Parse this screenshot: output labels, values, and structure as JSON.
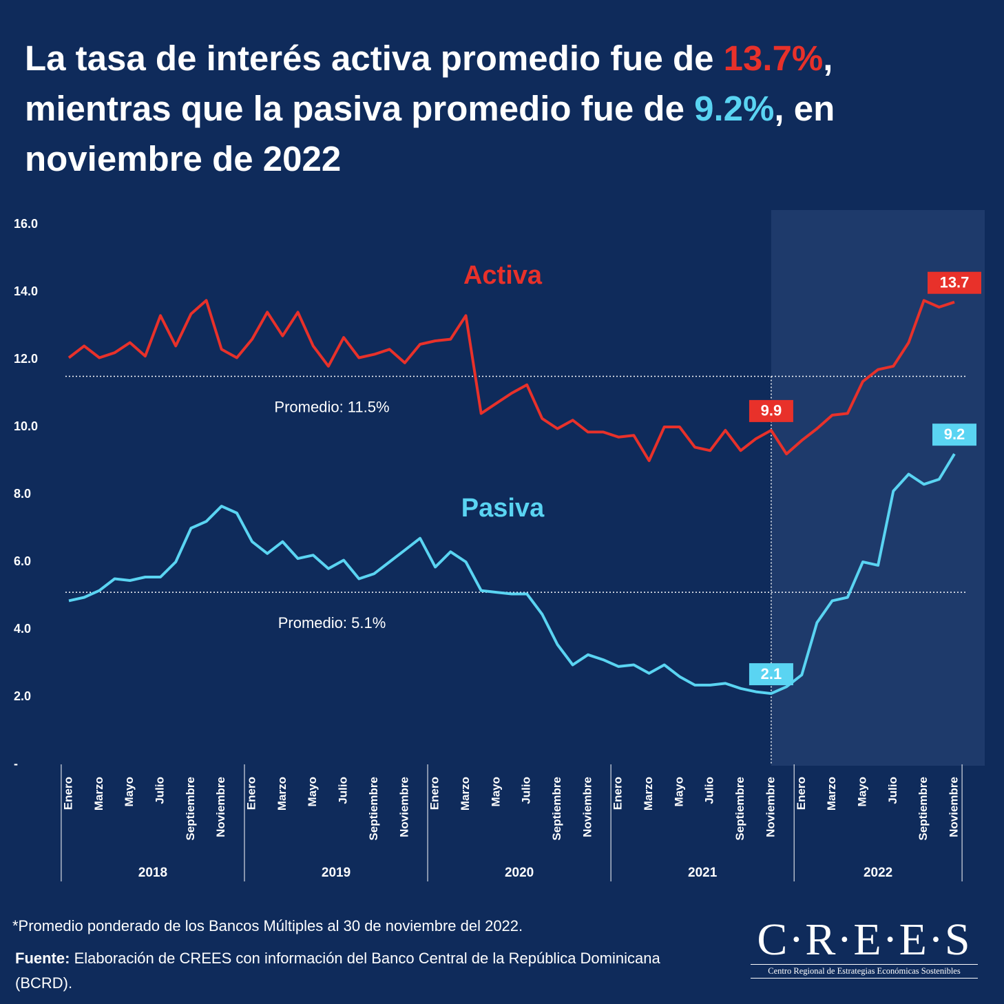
{
  "title_parts": [
    "La tasa de interés activa promedio fue de ",
    "13.7%",
    ", mientras que la pasiva promedio fue de ",
    "9.2%",
    ", en noviembre de 2022"
  ],
  "chart_data": {
    "type": "line",
    "categories": [
      "Enero",
      null,
      "Marzo",
      null,
      "Mayo",
      null,
      "Julio",
      null,
      "Septiembre",
      null,
      "Noviembre",
      null,
      "Enero",
      null,
      "Marzo",
      null,
      "Mayo",
      null,
      "Julio",
      null,
      "Septiembre",
      null,
      "Noviembre",
      null,
      "Enero",
      null,
      "Marzo",
      null,
      "Mayo",
      null,
      "Julio",
      null,
      "Septiembre",
      null,
      "Noviembre",
      null,
      "Enero",
      null,
      "Marzo",
      null,
      "Mayo",
      null,
      "Julio",
      null,
      "Septiembre",
      null,
      "Noviembre",
      null,
      "Enero",
      null,
      "Marzo",
      null,
      "Mayo",
      null,
      "Julio",
      null,
      "Septiembre",
      null,
      "Noviembre"
    ],
    "x_groups": [
      "2018",
      "2019",
      "2020",
      "2021",
      "2022"
    ],
    "ylim": [
      0,
      16
    ],
    "yticks": [
      {
        "value": 0,
        "label": "-"
      },
      {
        "value": 2,
        "label": "2.0"
      },
      {
        "value": 4,
        "label": "4.0"
      },
      {
        "value": 6,
        "label": "6.0"
      },
      {
        "value": 8,
        "label": "8.0"
      },
      {
        "value": 10,
        "label": "10.0"
      },
      {
        "value": 12,
        "label": "12.0"
      },
      {
        "value": 14,
        "label": "14.0"
      },
      {
        "value": 16,
        "label": "16.0"
      }
    ],
    "series": [
      {
        "name": "Activa",
        "color": "#e8312a",
        "values": [
          12.05,
          12.4,
          12.05,
          12.2,
          12.5,
          12.1,
          13.3,
          12.4,
          13.35,
          13.75,
          12.3,
          12.05,
          12.6,
          13.4,
          12.7,
          13.4,
          12.4,
          11.8,
          12.65,
          12.05,
          12.15,
          12.3,
          11.9,
          12.45,
          12.55,
          12.6,
          13.3,
          10.4,
          10.7,
          11.0,
          11.25,
          10.25,
          9.95,
          10.2,
          9.85,
          9.85,
          9.7,
          9.75,
          9.0,
          10.0,
          10.0,
          9.4,
          9.3,
          9.9,
          9.3,
          9.65,
          9.9,
          9.2,
          9.6,
          9.95,
          10.35,
          10.4,
          11.35,
          11.7,
          11.8,
          12.5,
          13.75,
          13.55,
          13.7
        ],
        "value_labels": [
          null,
          null,
          null,
          null,
          null,
          null,
          null,
          null,
          null,
          null,
          null,
          null,
          null,
          null,
          null,
          null,
          null,
          null,
          null,
          null,
          null,
          null,
          null,
          null,
          null,
          null,
          null,
          null,
          null,
          null,
          null,
          null,
          null,
          null,
          null,
          null,
          null,
          null,
          null,
          null,
          null,
          null,
          null,
          null,
          null,
          null,
          "9.9",
          null,
          null,
          null,
          null,
          null,
          null,
          null,
          null,
          null,
          null,
          null,
          "13.7"
        ]
      },
      {
        "name": "Pasiva",
        "color": "#5ad4f2",
        "values": [
          4.85,
          4.95,
          5.15,
          5.5,
          5.45,
          5.55,
          5.55,
          6.0,
          7.0,
          7.2,
          7.65,
          7.45,
          6.6,
          6.25,
          6.6,
          6.1,
          6.2,
          5.8,
          6.05,
          5.5,
          5.65,
          6.0,
          6.35,
          6.7,
          5.85,
          6.3,
          6.0,
          5.15,
          5.1,
          5.05,
          5.05,
          4.45,
          3.55,
          2.95,
          3.25,
          3.1,
          2.9,
          2.95,
          2.7,
          2.95,
          2.6,
          2.35,
          2.35,
          2.4,
          2.25,
          2.15,
          2.1,
          2.3,
          2.65,
          4.2,
          4.85,
          4.95,
          6.0,
          5.9,
          8.1,
          8.6,
          8.3,
          8.45,
          9.2
        ],
        "value_labels": [
          null,
          null,
          null,
          null,
          null,
          null,
          null,
          null,
          null,
          null,
          null,
          null,
          null,
          null,
          null,
          null,
          null,
          null,
          null,
          null,
          null,
          null,
          null,
          null,
          null,
          null,
          null,
          null,
          null,
          null,
          null,
          null,
          null,
          null,
          null,
          null,
          null,
          null,
          null,
          null,
          null,
          null,
          null,
          null,
          null,
          null,
          "2.1",
          null,
          null,
          null,
          null,
          null,
          null,
          null,
          null,
          null,
          null,
          null,
          "9.2"
        ]
      }
    ],
    "reference_lines": [
      {
        "value": 11.5,
        "label": "Promedio: 11.5%"
      },
      {
        "value": 5.1,
        "label": "Promedio: 5.1%"
      }
    ]
  },
  "footer": {
    "note": "*Promedio ponderado de los Bancos Múltiples al 30 de noviembre del 2022.",
    "source_label": "Fuente:",
    "source": "Elaboración de CREES con información del Banco Central de la República Dominicana (BCRD).",
    "logo": "C·R·E·E·S",
    "logo_subtitle": "Centro Regional de Estrategias Económicas Sostenibles"
  }
}
